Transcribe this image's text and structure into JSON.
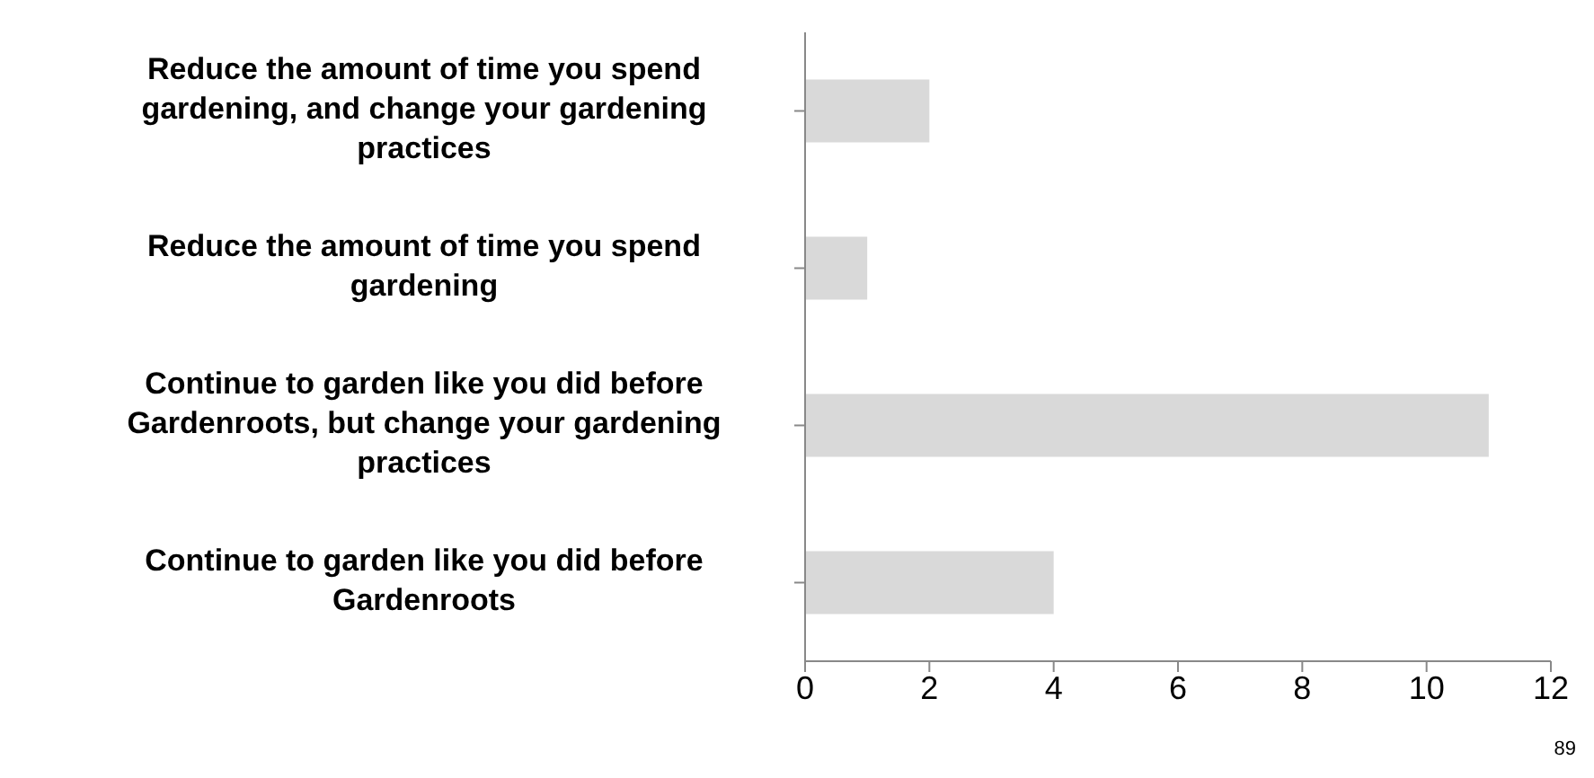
{
  "chart_data": {
    "type": "bar",
    "orientation": "horizontal",
    "categories": [
      "Reduce the amount of time you spend gardening, and change your gardening practices",
      "Reduce the amount of time you spend gardening",
      "Continue to garden like you did before Gardenroots, but change your gardening practices",
      "Continue to garden like you did before Gardenroots"
    ],
    "values": [
      2,
      1,
      11,
      4
    ],
    "color": "#d9d9d9",
    "xlim": [
      0,
      12
    ],
    "xticks": [
      0,
      2,
      4,
      6,
      8,
      10,
      12
    ],
    "annotations": [
      "89"
    ]
  }
}
